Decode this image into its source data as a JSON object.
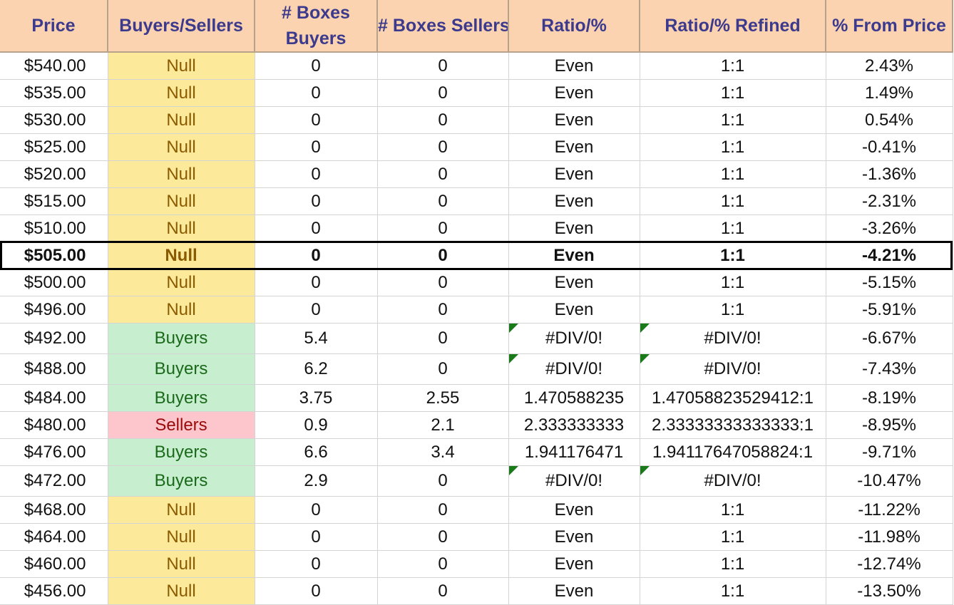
{
  "headers": {
    "price": "Price",
    "buyers_sellers": "Buyers/Sellers",
    "boxes_buyers": "# Boxes Buyers",
    "boxes_sellers": "# Boxes Sellers",
    "ratio": "Ratio/%",
    "ratio_refined": "Ratio/% Refined",
    "from_price": "% From Price"
  },
  "colors": {
    "header_bg": "#fbd3b0",
    "header_text": "#3b3a8c",
    "null_bg": "#fde99a",
    "buyers_bg": "#c7eece",
    "sellers_bg": "#fdc6cc",
    "error_flag": "#1a7a1a"
  },
  "current_price_row_index": 7,
  "rows": [
    {
      "price": "$540.00",
      "type": "Null",
      "boxes_buyers": "0",
      "boxes_sellers": "0",
      "ratio": "Even",
      "ratio_refined": "1:1",
      "from_price": "2.43%"
    },
    {
      "price": "$535.00",
      "type": "Null",
      "boxes_buyers": "0",
      "boxes_sellers": "0",
      "ratio": "Even",
      "ratio_refined": "1:1",
      "from_price": "1.49%"
    },
    {
      "price": "$530.00",
      "type": "Null",
      "boxes_buyers": "0",
      "boxes_sellers": "0",
      "ratio": "Even",
      "ratio_refined": "1:1",
      "from_price": "0.54%"
    },
    {
      "price": "$525.00",
      "type": "Null",
      "boxes_buyers": "0",
      "boxes_sellers": "0",
      "ratio": "Even",
      "ratio_refined": "1:1",
      "from_price": "-0.41%"
    },
    {
      "price": "$520.00",
      "type": "Null",
      "boxes_buyers": "0",
      "boxes_sellers": "0",
      "ratio": "Even",
      "ratio_refined": "1:1",
      "from_price": "-1.36%"
    },
    {
      "price": "$515.00",
      "type": "Null",
      "boxes_buyers": "0",
      "boxes_sellers": "0",
      "ratio": "Even",
      "ratio_refined": "1:1",
      "from_price": "-2.31%"
    },
    {
      "price": "$510.00",
      "type": "Null",
      "boxes_buyers": "0",
      "boxes_sellers": "0",
      "ratio": "Even",
      "ratio_refined": "1:1",
      "from_price": "-3.26%"
    },
    {
      "price": "$505.00",
      "type": "Null",
      "boxes_buyers": "0",
      "boxes_sellers": "0",
      "ratio": "Even",
      "ratio_refined": "1:1",
      "from_price": "-4.21%"
    },
    {
      "price": "$500.00",
      "type": "Null",
      "boxes_buyers": "0",
      "boxes_sellers": "0",
      "ratio": "Even",
      "ratio_refined": "1:1",
      "from_price": "-5.15%"
    },
    {
      "price": "$496.00",
      "type": "Null",
      "boxes_buyers": "0",
      "boxes_sellers": "0",
      "ratio": "Even",
      "ratio_refined": "1:1",
      "from_price": "-5.91%"
    },
    {
      "price": "$492.00",
      "type": "Buyers",
      "boxes_buyers": "5.4",
      "boxes_sellers": "0",
      "ratio": "#DIV/0!",
      "ratio_refined": "#DIV/0!",
      "from_price": "-6.67%"
    },
    {
      "price": "$488.00",
      "type": "Buyers",
      "boxes_buyers": "6.2",
      "boxes_sellers": "0",
      "ratio": "#DIV/0!",
      "ratio_refined": "#DIV/0!",
      "from_price": "-7.43%"
    },
    {
      "price": "$484.00",
      "type": "Buyers",
      "boxes_buyers": "3.75",
      "boxes_sellers": "2.55",
      "ratio": "1.470588235",
      "ratio_refined": "1.47058823529412:1",
      "from_price": "-8.19%"
    },
    {
      "price": "$480.00",
      "type": "Sellers",
      "boxes_buyers": "0.9",
      "boxes_sellers": "2.1",
      "ratio": "2.333333333",
      "ratio_refined": "2.33333333333333:1",
      "from_price": "-8.95%"
    },
    {
      "price": "$476.00",
      "type": "Buyers",
      "boxes_buyers": "6.6",
      "boxes_sellers": "3.4",
      "ratio": "1.941176471",
      "ratio_refined": "1.94117647058824:1",
      "from_price": "-9.71%"
    },
    {
      "price": "$472.00",
      "type": "Buyers",
      "boxes_buyers": "2.9",
      "boxes_sellers": "0",
      "ratio": "#DIV/0!",
      "ratio_refined": "#DIV/0!",
      "from_price": "-10.47%"
    },
    {
      "price": "$468.00",
      "type": "Null",
      "boxes_buyers": "0",
      "boxes_sellers": "0",
      "ratio": "Even",
      "ratio_refined": "1:1",
      "from_price": "-11.22%"
    },
    {
      "price": "$464.00",
      "type": "Null",
      "boxes_buyers": "0",
      "boxes_sellers": "0",
      "ratio": "Even",
      "ratio_refined": "1:1",
      "from_price": "-11.98%"
    },
    {
      "price": "$460.00",
      "type": "Null",
      "boxes_buyers": "0",
      "boxes_sellers": "0",
      "ratio": "Even",
      "ratio_refined": "1:1",
      "from_price": "-12.74%"
    },
    {
      "price": "$456.00",
      "type": "Null",
      "boxes_buyers": "0",
      "boxes_sellers": "0",
      "ratio": "Even",
      "ratio_refined": "1:1",
      "from_price": "-13.50%"
    }
  ]
}
